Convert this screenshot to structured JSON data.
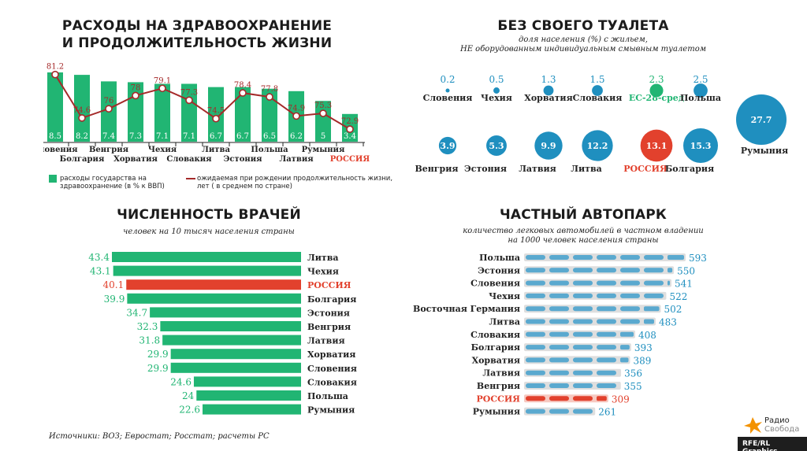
{
  "colors": {
    "green": "#21b573",
    "red": "#e2412d",
    "darkred": "#a52a2a",
    "blue": "#1f8fbf",
    "labelBlue": "#1f8fbf",
    "car": "#5aa9cf",
    "carBg": "#dedede"
  },
  "panel1": {
    "title_line1": "РАСХОДЫ НА ЗДРАВООХРАНЕНИЕ",
    "title_line2": "И ПРОДОЛЖИТЕЛЬНОСТЬ ЖИЗНИ",
    "legend_bar": "расходы государства на здравоохранение (в % к ВВП)",
    "legend_line": "ожидаемая при рождении продолжительность жизни, лет ( в среднем по стране)"
  },
  "panel2": {
    "title": "БЕЗ СВОЕГО ТУАЛЕТА",
    "subtitle_line1": "доля населения (%) с жильем,",
    "subtitle_line2": "НЕ оборудованным индивидуальным смывным туалетом"
  },
  "panel3": {
    "title": "ЧИСЛЕННОСТЬ ВРАЧЕЙ",
    "subtitle": "человек на 10 тысяч населения страны"
  },
  "panel4": {
    "title": "ЧАСТНЫЙ АВТОПАРК",
    "subtitle_line1": "количество легковых автомобилей в частном владении",
    "subtitle_line2": "на 1000 человек населения страны"
  },
  "footer": {
    "sources": "Источники: ВОЗ; Евростат; Росстат; расчеты РС",
    "credit": "RFE/RL Graphics",
    "logo_line1": "Радио",
    "logo_line2": "Свобода"
  },
  "chart_data": [
    {
      "type": "bar+line",
      "title": "РАСХОДЫ НА ЗДРАВООХРАНЕНИЕ И ПРОДОЛЖИТЕЛЬНОСТЬ ЖИЗНИ",
      "categories": [
        "Словения",
        "Болгария",
        "Венгрия",
        "Хорватия",
        "Чехия",
        "Словакия",
        "Литва",
        "Эстония",
        "Польша",
        "Латвия",
        "Румыния",
        "РОССИЯ"
      ],
      "highlight": "РОССИЯ",
      "series": [
        {
          "name": "расходы государства на здравоохранение (в % к ВВП)",
          "type": "bar",
          "values": [
            8.5,
            8.2,
            7.4,
            7.3,
            7.1,
            7.1,
            6.7,
            6.7,
            6.5,
            6.2,
            5,
            3.4
          ]
        },
        {
          "name": "ожидаемая при рождении продолжительность жизни, лет ( в среднем по стране)",
          "type": "line",
          "values": [
            81.2,
            74.6,
            76,
            78,
            79.1,
            77.3,
            74.5,
            78.4,
            77.8,
            74.9,
            75.3,
            72.9
          ]
        }
      ]
    },
    {
      "type": "bubble",
      "title": "БЕЗ СВОЕГО ТУАЛЕТА",
      "categories": [
        "Словения",
        "Чехия",
        "Хорватия",
        "Словакия",
        "ЕС-28-сред",
        "Польша",
        "Румыния",
        "Венгрия",
        "Эстония",
        "Латвия",
        "Литва",
        "РОССИЯ",
        "Болгария"
      ],
      "values": [
        0.2,
        0.5,
        1.3,
        1.5,
        2.3,
        2.5,
        27.7,
        3.9,
        5.3,
        9.9,
        12.2,
        13.1,
        15.3
      ],
      "value_labels": [
        "0.2",
        "0.5",
        "1.3",
        "1.5",
        "2.3",
        "2.5",
        "27.7",
        "3.9",
        "5.3",
        "9.9",
        "12.2",
        "13.1",
        "15.3"
      ]
    },
    {
      "type": "bar",
      "orientation": "horizontal",
      "title": "ЧИСЛЕННОСТЬ ВРАЧЕЙ",
      "categories": [
        "Литва",
        "Чехия",
        "РОССИЯ",
        "Болгария",
        "Эстония",
        "Венгрия",
        "Латвия",
        "Хорватия",
        "Словения",
        "Словакия",
        "Польша",
        "Румыния"
      ],
      "values": [
        43.4,
        43.1,
        40.1,
        39.9,
        34.7,
        32.3,
        31.8,
        29.9,
        29.9,
        24.6,
        24,
        22.6
      ],
      "value_labels": [
        "43.4",
        "43.1",
        "40.1",
        "39.9",
        "34.7",
        "32.3",
        "31.8",
        "29.9",
        "29.9",
        "24.6",
        "24",
        "22.6"
      ]
    },
    {
      "type": "bar",
      "orientation": "horizontal",
      "title": "ЧАСТНЫЙ АВТОПАРК",
      "categories": [
        "Польша",
        "Эстония",
        "Словения",
        "Чехия",
        "Восточная Германия",
        "Литва",
        "Словакия",
        "Болгария",
        "Хорватия",
        "Латвия",
        "Венгрия",
        "РОССИЯ",
        "Румыния"
      ],
      "values": [
        593,
        550,
        541,
        522,
        502,
        483,
        408,
        393,
        389,
        356,
        355,
        309,
        261
      ]
    }
  ]
}
